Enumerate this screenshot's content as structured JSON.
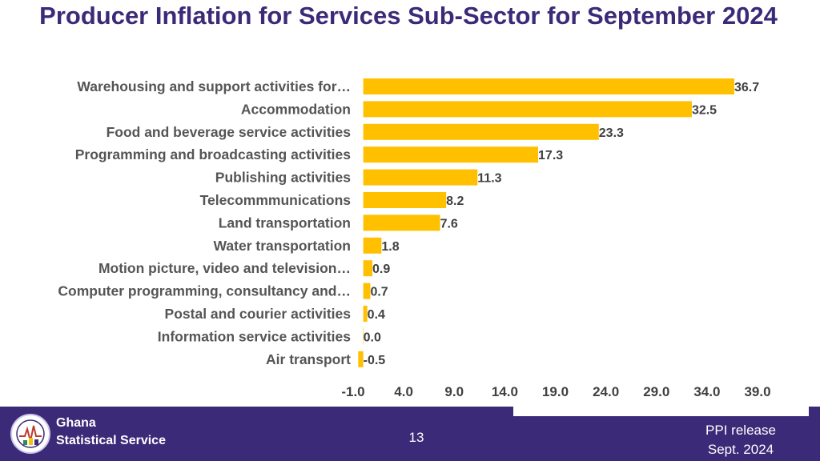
{
  "page": {
    "title": "Producer Inflation for Services Sub-Sector for September 2024"
  },
  "chart_data": {
    "type": "bar",
    "orientation": "horizontal",
    "title": "Producer Inflation for Services Sub-Sector for September 2024",
    "categories": [
      "Warehousing and support activities for…",
      "Accommodation",
      "Food and beverage service activities",
      "Programming and broadcasting activities",
      "Publishing activities",
      "Telecommmunications",
      "Land transportation",
      "Water transportation",
      "Motion picture, video and television…",
      "Computer programming, consultancy and…",
      "Postal and courier activities",
      "Information service activities",
      "Air transport"
    ],
    "values": [
      36.7,
      32.5,
      23.3,
      17.3,
      11.3,
      8.2,
      7.6,
      1.8,
      0.9,
      0.7,
      0.4,
      0.0,
      -0.5
    ],
    "value_labels": [
      "36.7",
      "32.5",
      "23.3",
      "17.3",
      "11.3",
      "8.2",
      "7.6",
      "1.8",
      "0.9",
      "0.7",
      "0.4",
      "0.0",
      "-0.5"
    ],
    "x_ticks": [
      "-1.0",
      "4.0",
      "9.0",
      "14.0",
      "19.0",
      "24.0",
      "29.0",
      "34.0",
      "39.0"
    ],
    "xlim": [
      -1.0,
      39.0
    ],
    "bar_color": "#ffc000",
    "grid": false,
    "legend": "none"
  },
  "footer": {
    "org_line1": "Ghana",
    "org_line2": "Statistical Service",
    "page_number": "13",
    "release_line1": "PPI release",
    "release_line2": "Sept. 2024",
    "background_color": "#3b2a78"
  }
}
